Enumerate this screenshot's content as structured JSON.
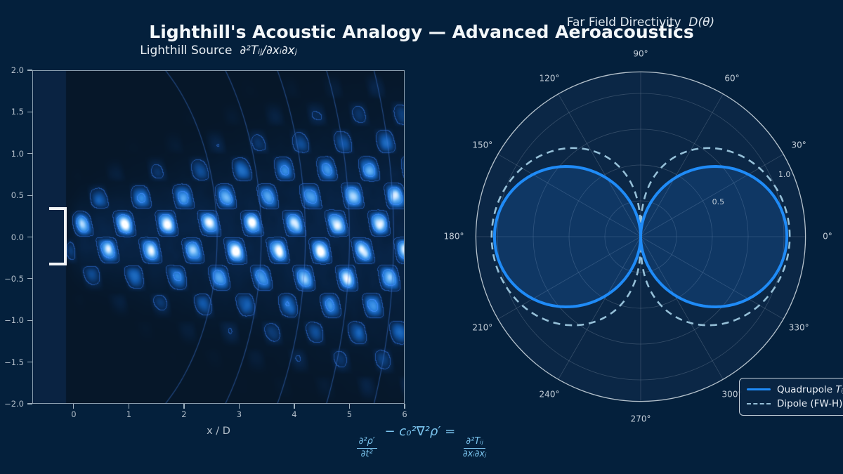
{
  "figure": {
    "title": "Lighthill's Acoustic Analogy — Advanced Aeroacoustics",
    "background_color": "#04203c"
  },
  "left_plot": {
    "title_text": "Lighthill Source",
    "title_math": "∂²Tᵢⱼ/∂xᵢ∂xⱼ",
    "xlabel": "x / D",
    "xtick_labels": [
      "0",
      "1",
      "2",
      "3",
      "4",
      "5",
      "6"
    ],
    "ytick_labels": [
      "2.0",
      "1.5",
      "1.0",
      "0.5",
      "0.0",
      "−0.5",
      "−1.0",
      "−1.5",
      "−2.0"
    ]
  },
  "polar_plot": {
    "title_text": "Far Field Directivity",
    "title_math": "D(θ)",
    "angle_labels": [
      "0°",
      "30°",
      "60°",
      "90°",
      "120°",
      "150°",
      "180°",
      "210°",
      "240°",
      "270°",
      "300°",
      "330°"
    ],
    "r_labels": [
      "0.5",
      "1.0"
    ],
    "legend": [
      {
        "pre": "Quadrupole ",
        "math": "Tᵢⱼ",
        "style": "solid",
        "color": "#1f8bf7"
      },
      {
        "pre": "Dipole (FW-H)",
        "math": "",
        "style": "dashed",
        "color": "#96c0d8"
      }
    ]
  },
  "equation": {
    "lhs_num": "∂²ρ′",
    "lhs_den": "∂t²",
    "mid": " − c₀²∇²ρ′ = ",
    "rhs_num": "∂²Tᵢⱼ",
    "rhs_den": "∂xᵢ∂xⱼ"
  },
  "chart_data": [
    {
      "type": "heatmap",
      "title": "Lighthill Source ∂²Tᵢⱼ/∂xᵢ∂xⱼ",
      "xlabel": "x / D",
      "xlim": [
        -0.75,
        6.0
      ],
      "ylim": [
        -2.0,
        2.0
      ],
      "xticks": [
        0,
        1,
        2,
        3,
        4,
        5,
        6
      ],
      "yticks": [
        2.0,
        1.5,
        1.0,
        0.5,
        0.0,
        -0.5,
        -1.0,
        -1.5,
        -2.0
      ],
      "mesh_x_start": -0.15,
      "pattern": {
        "description": "interfering wavepacket checkerboard of bright lobes on jet centerline, spreading and fading with |y|",
        "x_period": 0.77,
        "y_period": 0.66,
        "shear": 0.28,
        "envelope_halfwidth_at_x0": 0.42,
        "envelope_spread_rate": 0.17,
        "noise_amp": 0.55
      },
      "colormap_stops": [
        [
          0.0,
          "#061729"
        ],
        [
          0.18,
          "#0a2d5a"
        ],
        [
          0.38,
          "#1257a8"
        ],
        [
          0.58,
          "#2f86e0"
        ],
        [
          0.75,
          "#62b0f5"
        ],
        [
          0.88,
          "#b5dcff"
        ],
        [
          1.0,
          "#ffffff"
        ]
      ],
      "contour_levels": [
        {
          "level": 0.13,
          "color": [
            46,
            108,
            210,
            0.65
          ]
        },
        {
          "level": 0.5,
          "color": [
            64,
            140,
            255,
            0.75
          ]
        }
      ],
      "wavefront_arc_radii": [
        2.6,
        3.4,
        4.2,
        5.0,
        5.8,
        6.6
      ],
      "arc_color": "rgba(62,120,216,0.5)",
      "axes_bg_left_strip": "#0a2342",
      "nozzle_bracket": {
        "x_range": [
          -0.45,
          -0.12
        ],
        "y_range": [
          -0.345,
          0.36
        ],
        "color": "#f2f5f7"
      }
    },
    {
      "type": "polar_line",
      "title": "Far Field Directivity D(θ)",
      "rmax": 1.15,
      "r_grid": [
        0.25,
        0.5,
        0.75,
        1.0
      ],
      "r_tick_labels": [
        {
          "value": 0.5,
          "text": "0.5"
        },
        {
          "value": 1.0,
          "text": "1.0"
        }
      ],
      "r_label_angle_deg": 22.5,
      "angle_ticks_deg": [
        0,
        30,
        60,
        90,
        120,
        150,
        180,
        210,
        240,
        270,
        300,
        330
      ],
      "interior_color": "#0b2746",
      "grid_color": "#6f8499",
      "spine_color": "#c9d4dc",
      "series": [
        {
          "name": "Quadrupole Tᵢⱼ",
          "style": "solid",
          "color": "#1f8bf7",
          "linewidth": 4,
          "fill": "rgba(34,115,208,0.22)",
          "formula": "r = 1.02·|cosθ|^1.12",
          "scale": 1.02,
          "exponent": 1.12,
          "theta_deg": [
            0,
            15,
            30,
            45,
            60,
            75,
            90,
            105,
            120,
            135,
            150,
            165,
            180
          ],
          "r_values": [
            1.02,
            0.98,
            0.87,
            0.69,
            0.47,
            0.22,
            0.0,
            0.22,
            0.47,
            0.69,
            0.87,
            0.98,
            1.02
          ]
        },
        {
          "name": "Dipole (FW-H)",
          "style": "dashed",
          "color": "#96c0d8",
          "linewidth": 2.6,
          "fill": null,
          "formula": "r = 1.04·|cosθ|^0.58",
          "scale": 1.04,
          "exponent": 0.58,
          "theta_deg": [
            0,
            15,
            30,
            45,
            60,
            75,
            90,
            105,
            120,
            135,
            150,
            165,
            180
          ],
          "r_values": [
            1.04,
            1.02,
            0.96,
            0.85,
            0.7,
            0.48,
            0.0,
            0.48,
            0.7,
            0.85,
            0.96,
            1.02,
            1.04
          ]
        }
      ]
    }
  ]
}
